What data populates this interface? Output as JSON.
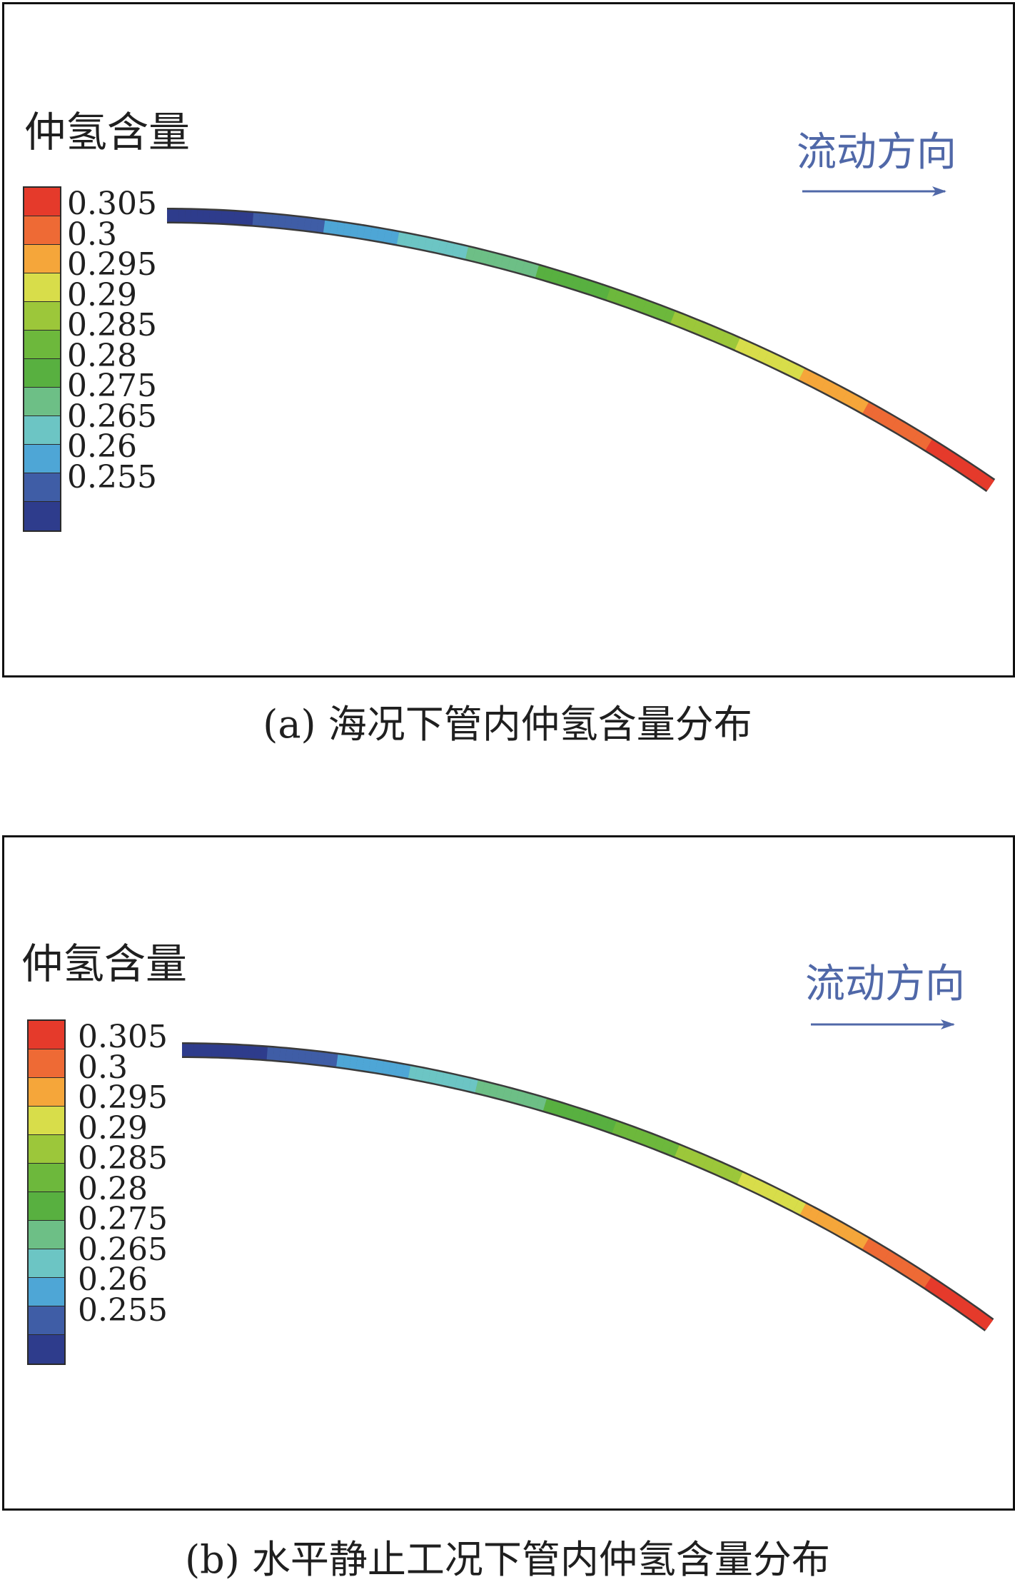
{
  "legend_title": "仲氢含量",
  "flow_label": "流动方向",
  "legend_ticks": [
    "0.305",
    "0.3",
    "0.295",
    "0.29",
    "0.285",
    "0.28",
    "0.275",
    "0.265",
    "0.26",
    "0.255"
  ],
  "legend_colors": [
    "#e53a2b",
    "#ee6a35",
    "#f5a63a",
    "#d8dd4a",
    "#9cc73a",
    "#6db83c",
    "#58b040",
    "#6dbf86",
    "#6cc5c4",
    "#4ea6d6",
    "#3f5da6",
    "#2e3c8c"
  ],
  "arrow_color": "#5068a8",
  "panels": [
    {
      "caption": "(a) 海况下管内仲氢含量分布"
    },
    {
      "caption": "(b) 水平静止工况下管内仲氢含量分布"
    }
  ]
}
